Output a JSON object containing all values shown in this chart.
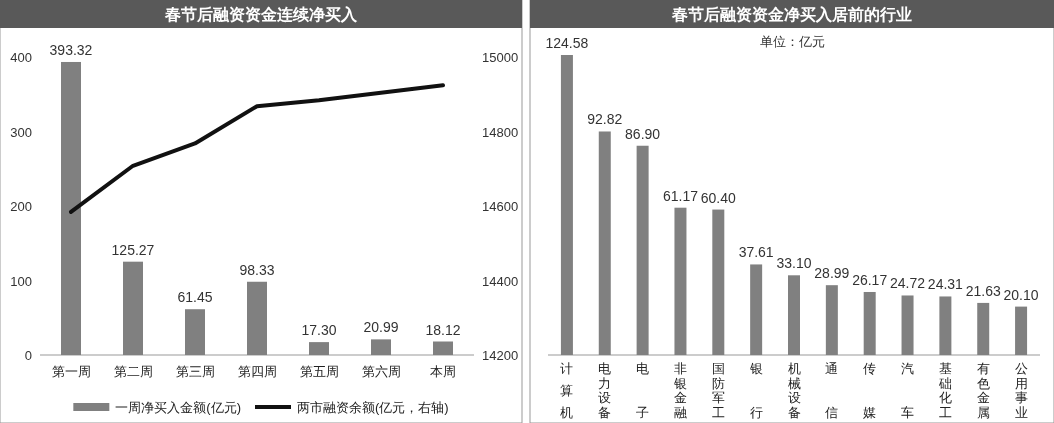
{
  "chart_data": [
    {
      "type": "bar",
      "title": "春节后融资资金连续净买入",
      "categories": [
        "第一周",
        "第二周",
        "第三周",
        "第四周",
        "第五周",
        "第六周",
        "本周"
      ],
      "series": [
        {
          "name": "一周净买入金额(亿元)",
          "color": "#808080",
          "values": [
            393.32,
            125.27,
            61.45,
            98.33,
            17.3,
            20.99,
            18.12
          ],
          "value_labels": [
            "393.32",
            "125.27",
            "61.45",
            "98.33",
            "17.30",
            "20.99",
            "18.12"
          ]
        },
        {
          "name": "两市融资余额(亿元，右轴)",
          "type": "line",
          "axis": "y2",
          "color": "#111111",
          "values": [
            14584,
            14708,
            14768,
            14868,
            14884,
            14904,
            14924
          ]
        }
      ],
      "ylim": [
        0,
        400
      ],
      "yticks": [
        0,
        100,
        200,
        300,
        400
      ],
      "y2lim": [
        14200,
        15000
      ],
      "y2ticks": [
        14200,
        14400,
        14600,
        14800,
        15000
      ],
      "legend": "bottom"
    },
    {
      "type": "bar",
      "title": "春节后融资资金净买入居前的行业",
      "annotations": [
        "单位：亿元"
      ],
      "categories": [
        "计算机",
        "电力设备",
        "电子",
        "非银金融",
        "国防军工",
        "银行",
        "机械设备",
        "通信",
        "传媒",
        "汽车",
        "基础化工",
        "有色金属",
        "公用事业"
      ],
      "values": [
        124.58,
        92.82,
        86.9,
        61.17,
        60.4,
        37.61,
        33.1,
        28.99,
        26.17,
        24.72,
        24.31,
        21.63,
        20.1
      ],
      "color": "#808080",
      "value_labels": [
        "124.58",
        "92.82",
        "86.90",
        "61.17",
        "60.40",
        "37.61",
        "33.10",
        "28.99",
        "26.17",
        "24.72",
        "24.31",
        "21.63",
        "20.10"
      ]
    }
  ]
}
